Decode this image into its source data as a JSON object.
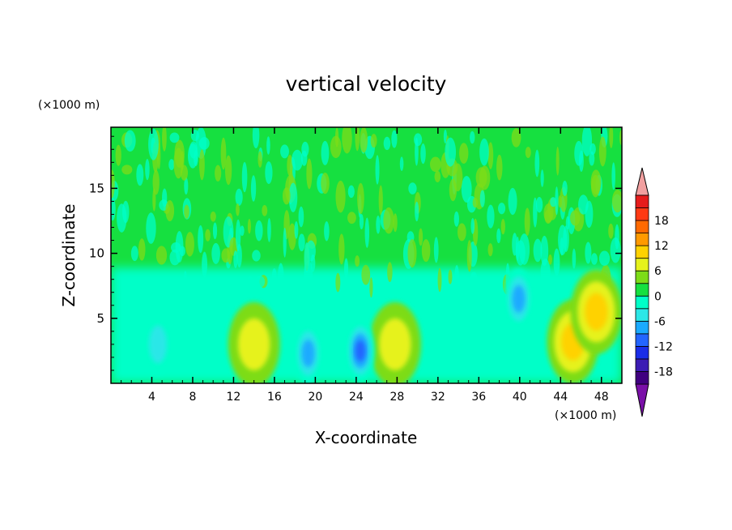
{
  "chart_data": {
    "type": "heatmap",
    "title": "vertical velocity",
    "xlabel": "X-coordinate",
    "ylabel": "Z-coordinate",
    "x_unit": "(×1000 m)",
    "y_unit": "(×1000 m)",
    "xlim": [
      0,
      50
    ],
    "ylim": [
      0,
      19.7
    ],
    "x_ticks": [
      4,
      8,
      12,
      16,
      20,
      24,
      28,
      32,
      36,
      40,
      44,
      48
    ],
    "y_ticks": [
      5,
      10,
      15
    ],
    "colorbar": {
      "levels": [
        -21,
        -18,
        -15,
        -12,
        -9,
        -6,
        -3,
        0,
        3,
        6,
        9,
        12,
        15,
        18,
        21
      ],
      "tick_labels": [
        18,
        12,
        6,
        0,
        -6,
        -12,
        -18
      ],
      "colors": [
        "#400080",
        "#3c1cb4",
        "#1a2de8",
        "#2365ff",
        "#1aaaff",
        "#2ce7e7",
        "#00ffc8",
        "#16e040",
        "#7ddc18",
        "#e6f21c",
        "#ffd200",
        "#ff9a00",
        "#ff6a00",
        "#ff3a14",
        "#e61c1c"
      ],
      "over_color": "#f2a0a0",
      "under_color": "#7a10a8"
    },
    "features": [
      {
        "x": 14.0,
        "z": 3.0,
        "w": 6,
        "label": "updraft"
      },
      {
        "x": 27.8,
        "z": 3.0,
        "w": 8,
        "label": "updraft"
      },
      {
        "x": 45.2,
        "z": 3.2,
        "w": 9,
        "label": "updraft"
      },
      {
        "x": 47.5,
        "z": 5.5,
        "w": 10,
        "label": "updraft"
      },
      {
        "x": 4.6,
        "z": 3.0,
        "w": -8,
        "label": "downdraft"
      },
      {
        "x": 19.3,
        "z": 2.3,
        "w": -10,
        "label": "downdraft"
      },
      {
        "x": 24.4,
        "z": 2.5,
        "w": -12,
        "label": "downdraft"
      },
      {
        "x": 39.9,
        "z": 6.5,
        "w": -9,
        "label": "downdraft"
      }
    ]
  }
}
